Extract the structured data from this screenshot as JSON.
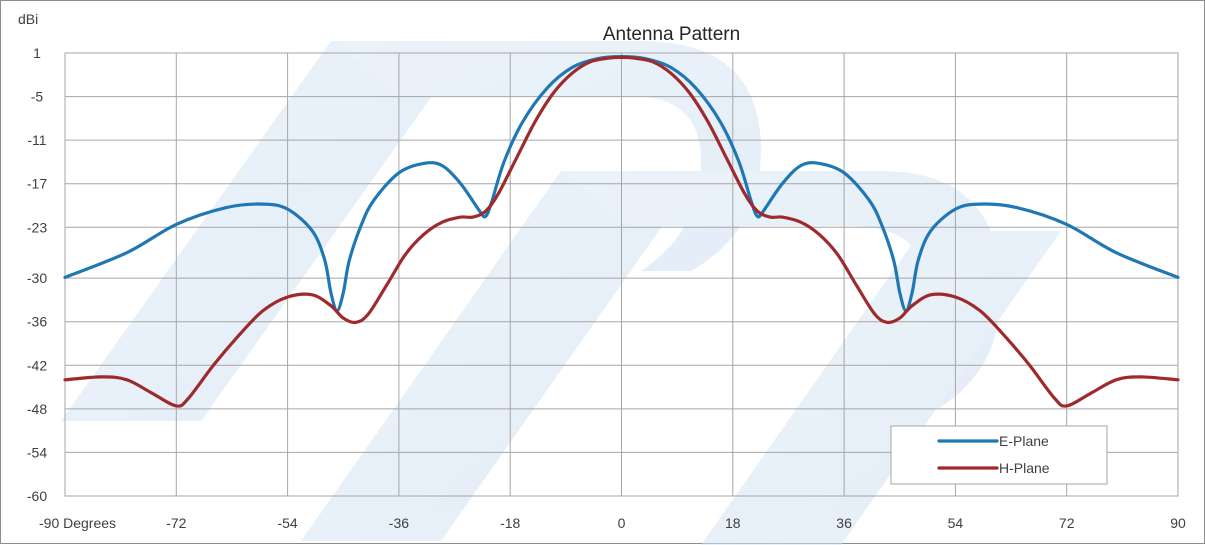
{
  "chart_data": {
    "type": "line",
    "title": "Antenna Pattern",
    "ylabel": "dBi",
    "xlabel": "",
    "x_tick_labels": [
      "-90 Degrees",
      "-72",
      "-54",
      "-36",
      "-18",
      "0",
      "18",
      "36",
      "54",
      "72",
      "90"
    ],
    "x_ticks": [
      -90,
      -72,
      -54,
      -36,
      -18,
      0,
      18,
      36,
      54,
      72,
      90
    ],
    "y_tick_labels": [
      "1",
      "-5",
      "-11",
      "-17",
      "-23",
      "-30",
      "-36",
      "-42",
      "-48",
      "-54",
      "-60"
    ],
    "y_ticks": [
      1,
      -5,
      -11,
      -17,
      -23,
      -30,
      -36,
      -42,
      -48,
      -54,
      -60
    ],
    "xlim": [
      -90,
      90
    ],
    "ylim": [
      -60,
      1
    ],
    "grid": true,
    "legend_position": "bottom-right",
    "series": [
      {
        "name": "E-Plane",
        "color": "#1f77b4",
        "x": [
          -90,
          -80,
          -72,
          -64,
          -58,
          -54,
          -50,
          -48,
          -47,
          -46,
          -45,
          -44,
          -42,
          -40,
          -36,
          -32,
          -29,
          -26,
          -23,
          -22,
          -21,
          -19,
          -16,
          -12,
          -8,
          -4,
          0,
          4,
          8,
          12,
          16,
          19,
          21,
          22,
          23,
          26,
          29,
          32,
          36,
          40,
          42,
          44,
          45,
          46,
          47,
          48,
          50,
          54,
          58,
          64,
          72,
          80,
          90
        ],
        "y": [
          -29.9,
          -26.5,
          -22.6,
          -20.3,
          -19.8,
          -20.5,
          -23.5,
          -27.5,
          -32,
          -34.5,
          -32,
          -27.5,
          -22.5,
          -19.2,
          -15.5,
          -14.2,
          -14.5,
          -17,
          -20.7,
          -21.5,
          -19.5,
          -14,
          -8.5,
          -3.8,
          -1,
          0.2,
          0.5,
          0.2,
          -1,
          -3.8,
          -8.5,
          -14,
          -19.5,
          -21.5,
          -20.7,
          -17,
          -14.5,
          -14.2,
          -15.5,
          -19.2,
          -22.5,
          -27.5,
          -32,
          -34.5,
          -32,
          -27.5,
          -23.5,
          -20.5,
          -19.8,
          -20.3,
          -22.6,
          -26.5,
          -29.9
        ]
      },
      {
        "name": "H-Plane",
        "color": "#9e2a2b",
        "x": [
          -90,
          -84,
          -80,
          -76,
          -72,
          -70,
          -66,
          -62,
          -58,
          -54,
          -50,
          -47,
          -45,
          -43,
          -41,
          -38,
          -35,
          -32,
          -29,
          -26,
          -24,
          -22,
          -20,
          -17,
          -14,
          -11,
          -8,
          -5,
          -2,
          0,
          2,
          5,
          8,
          11,
          14,
          17,
          20,
          22,
          24,
          26,
          29,
          32,
          35,
          38,
          41,
          43,
          45,
          47,
          50,
          54,
          58,
          62,
          66,
          70,
          72,
          76,
          80,
          84,
          90
        ],
        "y": [
          -44,
          -43.6,
          -44,
          -45.8,
          -47.6,
          -46.5,
          -42,
          -38,
          -34.5,
          -32.6,
          -32.3,
          -33.8,
          -35.5,
          -36.1,
          -35,
          -31,
          -26.8,
          -24,
          -22.3,
          -21.6,
          -21.6,
          -20.8,
          -18.5,
          -13.5,
          -8.5,
          -4.5,
          -1.8,
          -0.2,
          0.3,
          0.4,
          0.3,
          -0.2,
          -1.8,
          -4.5,
          -8.5,
          -13.5,
          -18.5,
          -20.8,
          -21.6,
          -21.6,
          -22.3,
          -24,
          -26.8,
          -31,
          -35,
          -36.1,
          -35.5,
          -33.8,
          -32.3,
          -32.6,
          -34.5,
          -38,
          -42,
          -46.5,
          -47.6,
          -45.8,
          -44,
          -43.6,
          -44
        ]
      }
    ]
  }
}
